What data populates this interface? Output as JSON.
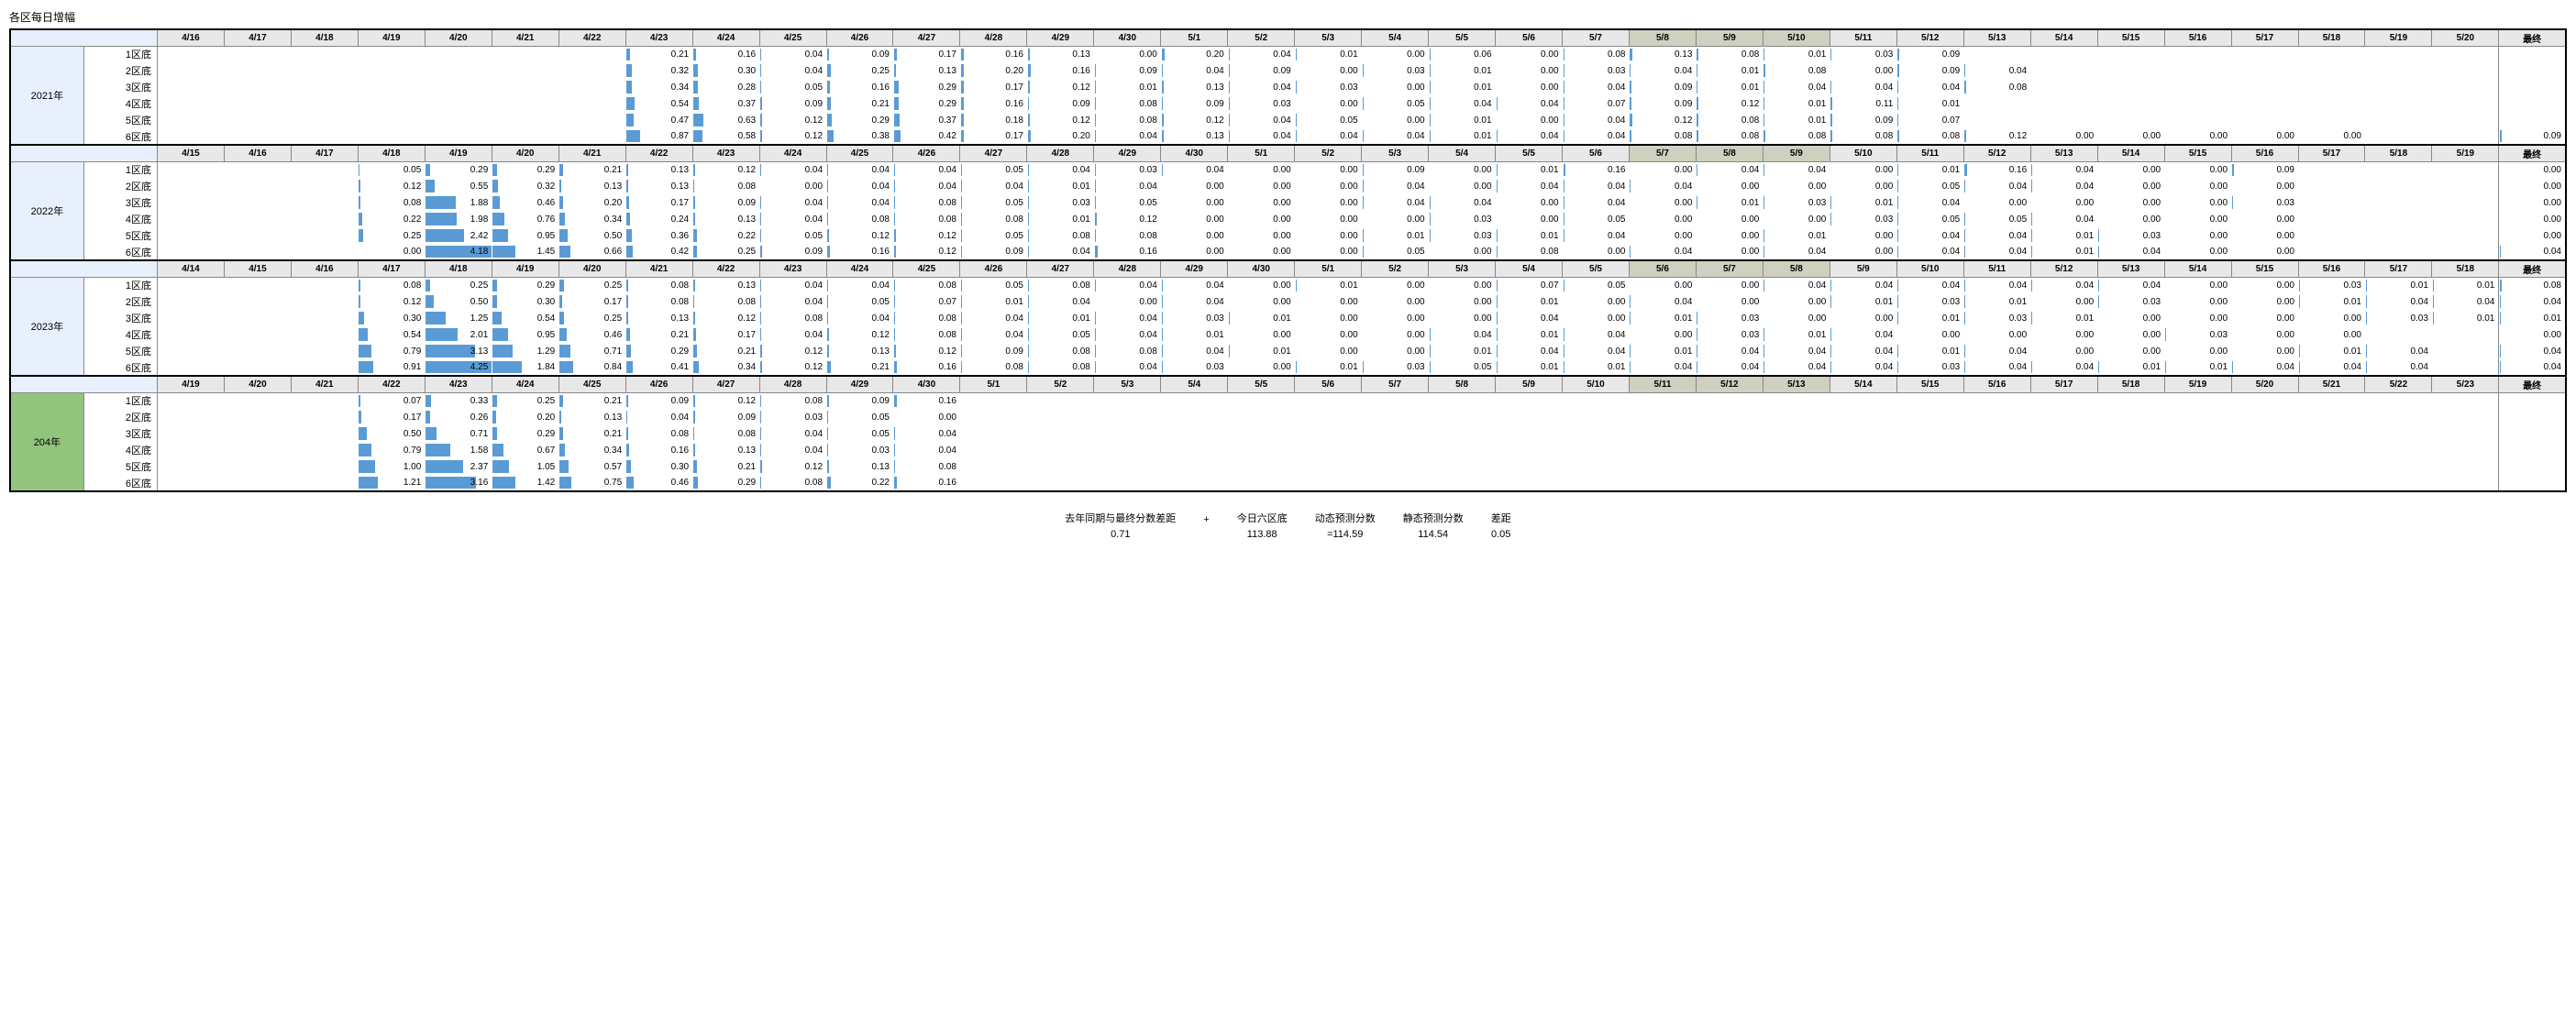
{
  "title": "各区每日增幅",
  "bar_color": "#5b9bd5",
  "bar_max_value": 4.25,
  "highlight_bg": "#d0d0c0",
  "year_bg": "#e8f0fe",
  "year_bg_green": "#93c47d",
  "final_label": "最终",
  "row_labels": [
    "1区底",
    "2区底",
    "3区底",
    "4区底",
    "5区底",
    "6区底"
  ],
  "years": [
    {
      "label": "2021年",
      "green": false,
      "dates": [
        "4/16",
        "4/17",
        "4/18",
        "4/19",
        "4/20",
        "4/21",
        "4/22",
        "4/23",
        "4/24",
        "4/25",
        "4/26",
        "4/27",
        "4/28",
        "4/29",
        "4/30",
        "5/1",
        "5/2",
        "5/3",
        "5/4",
        "5/5",
        "5/6",
        "5/7",
        "5/8",
        "5/9",
        "5/10",
        "5/11",
        "5/12",
        "5/13",
        "5/14",
        "5/15",
        "5/16",
        "5/17",
        "5/18",
        "5/19",
        "5/20"
      ],
      "hl": [
        22,
        23,
        24
      ],
      "rows": [
        [
          null,
          null,
          null,
          null,
          null,
          null,
          null,
          0.21,
          0.16,
          0.04,
          0.09,
          0.17,
          0.16,
          0.13,
          0.0,
          0.2,
          0.04,
          0.01,
          0.0,
          0.06,
          0.0,
          0.08,
          0.13,
          0.08,
          0.01,
          0.03,
          0.09
        ],
        [
          null,
          null,
          null,
          null,
          null,
          null,
          null,
          0.32,
          0.3,
          0.04,
          0.25,
          0.13,
          0.2,
          0.16,
          0.09,
          0.04,
          0.09,
          0.0,
          0.03,
          0.01,
          0.0,
          0.03,
          0.04,
          0.01,
          0.08,
          0.0,
          0.09,
          0.04
        ],
        [
          null,
          null,
          null,
          null,
          null,
          null,
          null,
          0.34,
          0.28,
          0.05,
          0.16,
          0.29,
          0.17,
          0.12,
          0.01,
          0.13,
          0.04,
          0.03,
          0.0,
          0.01,
          0.0,
          0.04,
          0.09,
          0.01,
          0.04,
          0.04,
          0.04,
          0.08
        ],
        [
          null,
          null,
          null,
          null,
          null,
          null,
          null,
          0.54,
          0.37,
          0.09,
          0.21,
          0.29,
          0.16,
          0.09,
          0.08,
          0.09,
          0.03,
          0.0,
          0.05,
          0.04,
          0.04,
          0.07,
          0.09,
          0.12,
          0.01,
          0.11,
          0.01
        ],
        [
          null,
          null,
          null,
          null,
          null,
          null,
          null,
          0.47,
          0.63,
          0.12,
          0.29,
          0.37,
          0.18,
          0.12,
          0.08,
          0.12,
          0.04,
          0.05,
          0.0,
          0.01,
          0.0,
          0.04,
          0.12,
          0.08,
          0.01,
          0.09,
          0.07
        ],
        [
          null,
          null,
          null,
          null,
          null,
          null,
          null,
          0.87,
          0.58,
          0.12,
          0.38,
          0.42,
          0.17,
          0.2,
          0.04,
          0.13,
          0.04,
          0.04,
          0.04,
          0.01,
          0.04,
          0.04,
          0.08,
          0.08,
          0.08,
          0.08,
          0.08,
          0.12,
          0.0,
          0.0,
          0.0,
          0.0,
          0.0,
          null,
          null
        ]
      ],
      "finals": [
        null,
        null,
        null,
        null,
        null,
        0.09
      ]
    },
    {
      "label": "2022年",
      "green": false,
      "dates": [
        "4/15",
        "4/16",
        "4/17",
        "4/18",
        "4/19",
        "4/20",
        "4/21",
        "4/22",
        "4/23",
        "4/24",
        "4/25",
        "4/26",
        "4/27",
        "4/28",
        "4/29",
        "4/30",
        "5/1",
        "5/2",
        "5/3",
        "5/4",
        "5/5",
        "5/6",
        "5/7",
        "5/8",
        "5/9",
        "5/10",
        "5/11",
        "5/12",
        "5/13",
        "5/14",
        "5/15",
        "5/16",
        "5/17",
        "5/18",
        "5/19"
      ],
      "hl": [
        22,
        23,
        24
      ],
      "rows": [
        [
          null,
          null,
          null,
          0.05,
          0.29,
          0.29,
          0.21,
          0.13,
          0.12,
          0.04,
          0.04,
          0.04,
          0.05,
          0.04,
          0.03,
          0.04,
          0.0,
          0.0,
          0.09,
          0.0,
          0.01,
          0.16,
          0.0,
          0.04,
          0.04,
          0.0,
          0.01,
          0.16,
          0.04,
          0.0,
          0.0,
          0.09
        ],
        [
          null,
          null,
          null,
          0.12,
          0.55,
          0.32,
          0.13,
          0.13,
          0.08,
          0.0,
          0.04,
          0.04,
          0.04,
          0.01,
          0.04,
          0.0,
          0.0,
          0.0,
          0.04,
          0.0,
          0.04,
          0.04,
          0.04,
          0.0,
          0.0,
          0.0,
          0.05,
          0.04,
          0.04,
          0.0,
          0.0,
          0.0
        ],
        [
          null,
          null,
          null,
          0.08,
          1.88,
          0.46,
          0.2,
          0.17,
          0.09,
          0.04,
          0.04,
          0.08,
          0.05,
          0.03,
          0.05,
          0.0,
          0.0,
          0.0,
          0.04,
          0.04,
          0.0,
          0.04,
          0.0,
          0.01,
          0.03,
          0.01,
          0.04,
          0.0,
          0.0,
          0.0,
          0.0,
          0.03
        ],
        [
          null,
          null,
          null,
          0.22,
          1.98,
          0.76,
          0.34,
          0.24,
          0.13,
          0.04,
          0.08,
          0.08,
          0.08,
          0.01,
          0.12,
          0.0,
          0.0,
          0.0,
          0.0,
          0.03,
          0.0,
          0.05,
          0.0,
          0.0,
          0.0,
          0.03,
          0.05,
          0.05,
          0.04,
          0.0,
          0.0,
          0.0
        ],
        [
          null,
          null,
          null,
          0.25,
          2.42,
          0.95,
          0.5,
          0.36,
          0.22,
          0.05,
          0.12,
          0.12,
          0.05,
          0.08,
          0.08,
          0.0,
          0.0,
          0.0,
          0.01,
          0.03,
          0.01,
          0.04,
          0.0,
          0.0,
          0.01,
          0.0,
          0.04,
          0.04,
          0.01,
          0.03,
          0.0,
          0.0
        ],
        [
          null,
          null,
          null,
          0.0,
          4.18,
          1.45,
          0.66,
          0.42,
          0.25,
          0.09,
          0.16,
          0.12,
          0.09,
          0.04,
          0.16,
          0.0,
          0.0,
          0.0,
          0.05,
          0.0,
          0.08,
          0.0,
          0.04,
          0.0,
          0.04,
          0.0,
          0.04,
          0.04,
          0.01,
          0.04,
          0.0,
          0.0
        ]
      ],
      "finals": [
        0.0,
        0.0,
        0.0,
        0.0,
        0.0,
        0.04
      ]
    },
    {
      "label": "2023年",
      "green": false,
      "dates": [
        "4/14",
        "4/15",
        "4/16",
        "4/17",
        "4/18",
        "4/19",
        "4/20",
        "4/21",
        "4/22",
        "4/23",
        "4/24",
        "4/25",
        "4/26",
        "4/27",
        "4/28",
        "4/29",
        "4/30",
        "5/1",
        "5/2",
        "5/3",
        "5/4",
        "5/5",
        "5/6",
        "5/7",
        "5/8",
        "5/9",
        "5/10",
        "5/11",
        "5/12",
        "5/13",
        "5/14",
        "5/15",
        "5/16",
        "5/17",
        "5/18"
      ],
      "hl": [
        22,
        23,
        24
      ],
      "rows": [
        [
          null,
          null,
          null,
          0.08,
          0.25,
          0.29,
          0.25,
          0.08,
          0.13,
          0.04,
          0.04,
          0.08,
          0.05,
          0.08,
          0.04,
          0.04,
          0.0,
          0.01,
          0.0,
          0.0,
          0.07,
          0.05,
          0.0,
          0.0,
          0.04,
          0.04,
          0.04,
          0.04,
          0.04,
          0.04,
          0.0,
          0.0,
          0.03,
          0.01,
          0.01
        ],
        [
          null,
          null,
          null,
          0.12,
          0.5,
          0.3,
          0.17,
          0.08,
          0.08,
          0.04,
          0.05,
          0.07,
          0.01,
          0.04,
          0.0,
          0.04,
          0.0,
          0.0,
          0.0,
          0.0,
          0.01,
          0.0,
          0.04,
          0.0,
          0.0,
          0.01,
          0.03,
          0.01,
          0.0,
          0.03,
          0.0,
          0.0,
          0.01,
          0.04,
          0.04
        ],
        [
          null,
          null,
          null,
          0.3,
          1.25,
          0.54,
          0.25,
          0.13,
          0.12,
          0.08,
          0.04,
          0.08,
          0.04,
          0.01,
          0.04,
          0.03,
          0.01,
          0.0,
          0.0,
          0.0,
          0.04,
          0.0,
          0.01,
          0.03,
          0.0,
          0.0,
          0.01,
          0.03,
          0.01,
          0.0,
          0.0,
          0.0,
          0.0,
          0.03,
          0.01
        ],
        [
          null,
          null,
          null,
          0.54,
          2.01,
          0.95,
          0.46,
          0.21,
          0.17,
          0.04,
          0.12,
          0.08,
          0.04,
          0.05,
          0.04,
          0.01,
          0.0,
          0.0,
          0.0,
          0.04,
          0.01,
          0.04,
          0.0,
          0.03,
          0.01,
          0.04,
          0.0,
          0.0,
          0.0,
          0.0,
          0.03,
          0.0,
          0.0
        ],
        [
          null,
          null,
          null,
          0.79,
          3.13,
          1.29,
          0.71,
          0.29,
          0.21,
          0.12,
          0.13,
          0.12,
          0.09,
          0.08,
          0.08,
          0.04,
          0.01,
          0.0,
          0.0,
          0.01,
          0.04,
          0.04,
          0.01,
          0.04,
          0.04,
          0.04,
          0.01,
          0.04,
          0.0,
          0.0,
          0.0,
          0.0,
          0.01,
          0.04
        ],
        [
          null,
          null,
          null,
          0.91,
          4.25,
          1.84,
          0.84,
          0.41,
          0.34,
          0.12,
          0.21,
          0.16,
          0.08,
          0.08,
          0.04,
          0.03,
          0.0,
          0.01,
          0.03,
          0.05,
          0.01,
          0.01,
          0.04,
          0.04,
          0.04,
          0.04,
          0.03,
          0.04,
          0.04,
          0.01,
          0.01,
          0.04,
          0.04,
          0.04
        ]
      ],
      "finals": [
        0.08,
        0.04,
        0.01,
        0.0,
        0.04,
        0.04
      ]
    },
    {
      "label": "204年",
      "green": true,
      "dates": [
        "4/19",
        "4/20",
        "4/21",
        "4/22",
        "4/23",
        "4/24",
        "4/25",
        "4/26",
        "4/27",
        "4/28",
        "4/29",
        "4/30",
        "5/1",
        "5/2",
        "5/3",
        "5/4",
        "5/5",
        "5/6",
        "5/7",
        "5/8",
        "5/9",
        "5/10",
        "5/11",
        "5/12",
        "5/13",
        "5/14",
        "5/15",
        "5/16",
        "5/17",
        "5/18",
        "5/19",
        "5/20",
        "5/21",
        "5/22",
        "5/23"
      ],
      "hl": [
        22,
        23,
        24
      ],
      "rows": [
        [
          null,
          null,
          null,
          0.07,
          0.33,
          0.25,
          0.21,
          0.09,
          0.12,
          0.08,
          0.09,
          0.16
        ],
        [
          null,
          null,
          null,
          0.17,
          0.26,
          0.2,
          0.13,
          0.04,
          0.09,
          0.03,
          0.05,
          0.0
        ],
        [
          null,
          null,
          null,
          0.5,
          0.71,
          0.29,
          0.21,
          0.08,
          0.08,
          0.04,
          0.05,
          0.04
        ],
        [
          null,
          null,
          null,
          0.79,
          1.58,
          0.67,
          0.34,
          0.16,
          0.13,
          0.04,
          0.03,
          0.04
        ],
        [
          null,
          null,
          null,
          1.0,
          2.37,
          1.05,
          0.57,
          0.3,
          0.21,
          0.12,
          0.13,
          0.08
        ],
        [
          null,
          null,
          null,
          1.21,
          3.16,
          1.42,
          0.75,
          0.46,
          0.29,
          0.08,
          0.22,
          0.16
        ]
      ],
      "finals": [
        null,
        null,
        null,
        null,
        null,
        null
      ]
    }
  ],
  "summary": {
    "items": [
      {
        "label": "去年同期与最终分数差距",
        "value": "0.71"
      },
      {
        "label": "",
        "value": "+"
      },
      {
        "label": "今日六区底",
        "value": "113.88"
      },
      {
        "label": "动态预测分数",
        "value": "=114.59"
      },
      {
        "label": "静态预测分数",
        "value": "114.54"
      },
      {
        "label": "差距",
        "value": "0.05"
      }
    ]
  }
}
